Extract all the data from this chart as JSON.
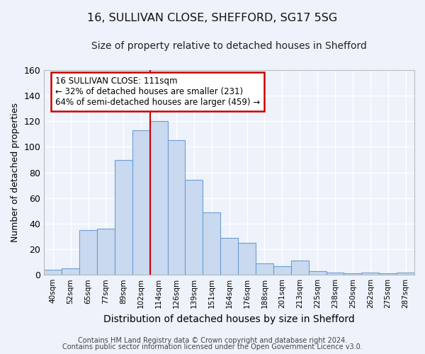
{
  "title_line1": "16, SULLIVAN CLOSE, SHEFFORD, SG17 5SG",
  "title_line2": "Size of property relative to detached houses in Shefford",
  "xlabel": "Distribution of detached houses by size in Shefford",
  "ylabel": "Number of detached properties",
  "categories": [
    "40sqm",
    "52sqm",
    "65sqm",
    "77sqm",
    "89sqm",
    "102sqm",
    "114sqm",
    "126sqm",
    "139sqm",
    "151sqm",
    "164sqm",
    "176sqm",
    "188sqm",
    "201sqm",
    "213sqm",
    "225sqm",
    "238sqm",
    "250sqm",
    "262sqm",
    "275sqm",
    "287sqm"
  ],
  "values": [
    4,
    5,
    35,
    36,
    90,
    113,
    120,
    105,
    74,
    49,
    29,
    25,
    9,
    7,
    11,
    3,
    2,
    1,
    2,
    1,
    2
  ],
  "bar_color": "#c9d9ef",
  "bar_edge_color": "#6b9fd4",
  "ylim": [
    0,
    160
  ],
  "yticks": [
    0,
    20,
    40,
    60,
    80,
    100,
    120,
    140,
    160
  ],
  "vline_x": 5.5,
  "vline_color": "#cc0000",
  "annotation_line1": "16 SULLIVAN CLOSE: 111sqm",
  "annotation_line2": "← 32% of detached houses are smaller (231)",
  "annotation_line3": "64% of semi-detached houses are larger (459) →",
  "annotation_box_color": "#ffffff",
  "annotation_box_edgecolor": "#cc0000",
  "footer_line1": "Contains HM Land Registry data © Crown copyright and database right 2024.",
  "footer_line2": "Contains public sector information licensed under the Open Government Licence v3.0.",
  "background_color": "#eef2fa",
  "grid_color": "#ffffff",
  "title_fontsize": 11.5,
  "subtitle_fontsize": 10,
  "xlabel_fontsize": 10,
  "ylabel_fontsize": 9,
  "footer_fontsize": 7
}
